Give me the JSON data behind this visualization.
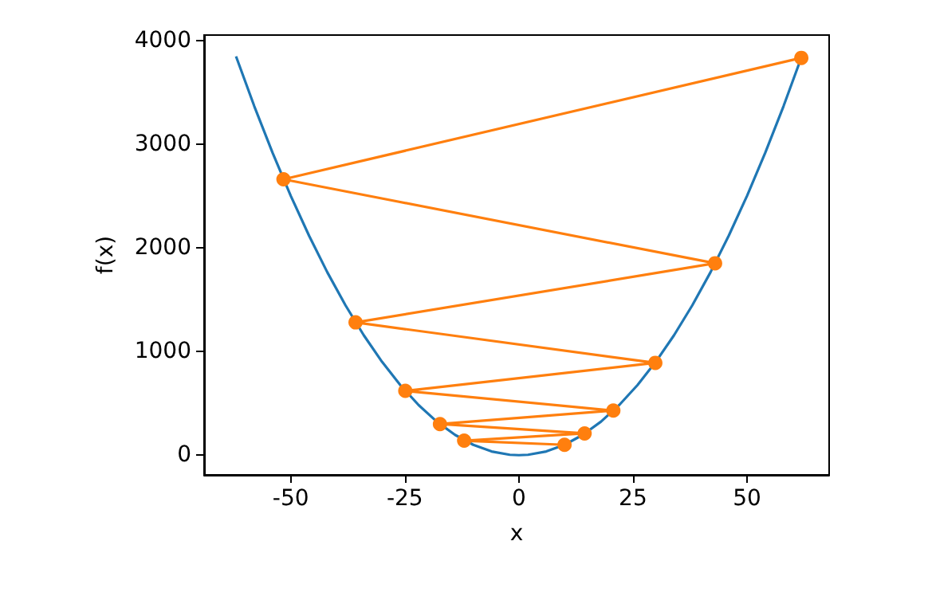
{
  "chart_data": {
    "type": "line",
    "xlabel": "x",
    "ylabel": "f(x)",
    "xlim": [
      -69,
      68
    ],
    "ylim": [
      -190,
      4050
    ],
    "xticks": [
      -50,
      -25,
      0,
      25,
      50
    ],
    "yticks": [
      0,
      1000,
      2000,
      3000,
      4000
    ],
    "series": [
      {
        "color": "#1f77b4",
        "marker": "none",
        "x": [
          -62,
          -58,
          -54,
          -50,
          -46,
          -42,
          -38,
          -34,
          -30,
          -26,
          -22,
          -18,
          -14,
          -10,
          -6,
          -2,
          0,
          2,
          6,
          10,
          14,
          18,
          22,
          26,
          30,
          34,
          38,
          42,
          46,
          50,
          54,
          58,
          62
        ],
        "values": [
          3844,
          3364,
          2916,
          2500,
          2116,
          1764,
          1444,
          1156,
          900,
          676,
          484,
          324,
          196,
          100,
          36,
          4,
          0,
          4,
          36,
          100,
          196,
          324,
          484,
          676,
          900,
          1156,
          1444,
          1764,
          2116,
          2500,
          2916,
          3364,
          3844
        ]
      },
      {
        "color": "#ff7f0e",
        "marker": "circle",
        "x": [
          61.9,
          -51.6,
          43.0,
          -35.8,
          29.9,
          -24.9,
          20.7,
          -17.3,
          14.4,
          -12.0,
          10.0
        ],
        "values": [
          3830,
          2660,
          1850,
          1280,
          890,
          620,
          430,
          300,
          210,
          140,
          100
        ]
      }
    ]
  }
}
